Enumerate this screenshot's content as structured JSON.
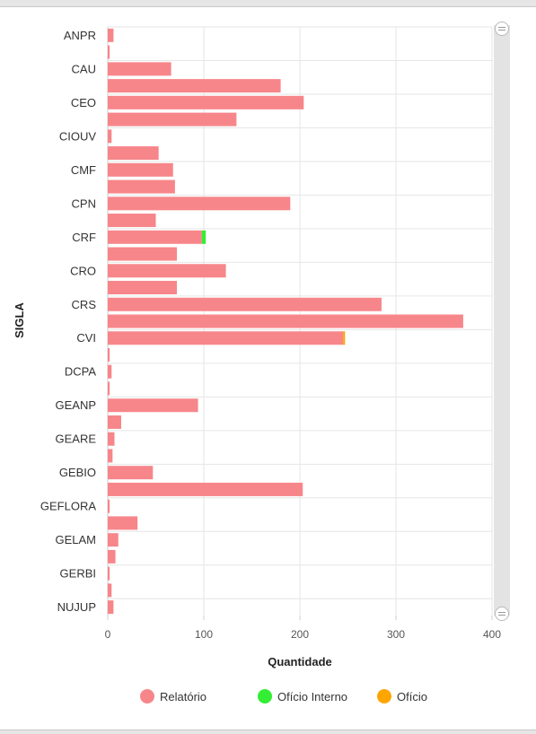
{
  "chart_data": {
    "type": "bar",
    "orientation": "horizontal",
    "stacked": true,
    "xlabel": "Quantidade",
    "ylabel": "SIGLA",
    "xlim": [
      0,
      400
    ],
    "xticks": [
      0,
      100,
      200,
      300,
      400
    ],
    "categories": [
      "ANPR",
      "",
      "CAU",
      "",
      "CEO",
      "",
      "CIOUV",
      "",
      "CMF",
      "",
      "CPN",
      "",
      "CRF",
      "",
      "CRO",
      "",
      "CRS",
      "",
      "CVI",
      "",
      "DCPA",
      "",
      "GEANP",
      "",
      "GEARE",
      "",
      "GEBIO",
      "",
      "GEFLORA",
      "",
      "GELAM",
      "",
      "GERBI",
      "",
      "NUJUP"
    ],
    "series": [
      {
        "name": "Relatório",
        "color": "#f7868a",
        "values": [
          6,
          2,
          66,
          180,
          204,
          134,
          4,
          53,
          68,
          70,
          190,
          50,
          98,
          72,
          123,
          72,
          285,
          370,
          245,
          2,
          4,
          2,
          94,
          14,
          7,
          5,
          47,
          203,
          2,
          31,
          11,
          8,
          2,
          4,
          6
        ]
      },
      {
        "name": "Ofício Interno",
        "color": "#33ee33",
        "values": [
          0,
          0,
          0,
          0,
          0,
          0,
          0,
          0,
          0,
          0,
          0,
          0,
          4,
          0,
          0,
          0,
          0,
          0,
          0,
          0,
          0,
          0,
          0,
          0,
          0,
          0,
          0,
          0,
          0,
          0,
          0,
          0,
          0,
          0,
          0
        ]
      },
      {
        "name": "Ofício",
        "color": "#ffa500",
        "values": [
          0,
          0,
          0,
          0,
          0,
          0,
          0,
          0,
          0,
          0,
          0,
          0,
          0,
          0,
          0,
          0,
          0,
          0,
          2,
          0,
          0,
          0,
          0,
          0,
          0,
          0,
          0,
          0,
          0,
          0,
          0,
          0,
          0,
          0,
          0
        ]
      }
    ],
    "grid": true,
    "legend_position": "bottom"
  }
}
